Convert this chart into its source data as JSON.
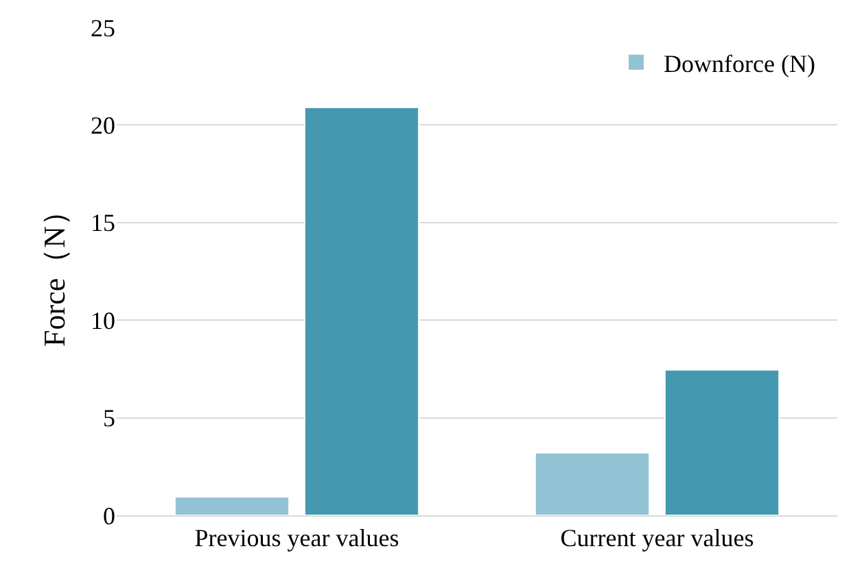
{
  "chart_data": {
    "type": "bar",
    "ylabel": "Force（N）",
    "categories": [
      "Previous year values",
      "Current year values"
    ],
    "series": [
      {
        "name": "Downforce (N)",
        "color": "#92c3d4",
        "values": [
          0.95,
          3.2
        ]
      },
      {
        "color": "#4499b0",
        "values": [
          20.9,
          7.45
        ]
      }
    ],
    "ylim": [
      0,
      25
    ],
    "yticks": [
      0,
      5,
      10,
      15,
      20,
      25
    ],
    "grid": "y",
    "legend": "top right"
  }
}
